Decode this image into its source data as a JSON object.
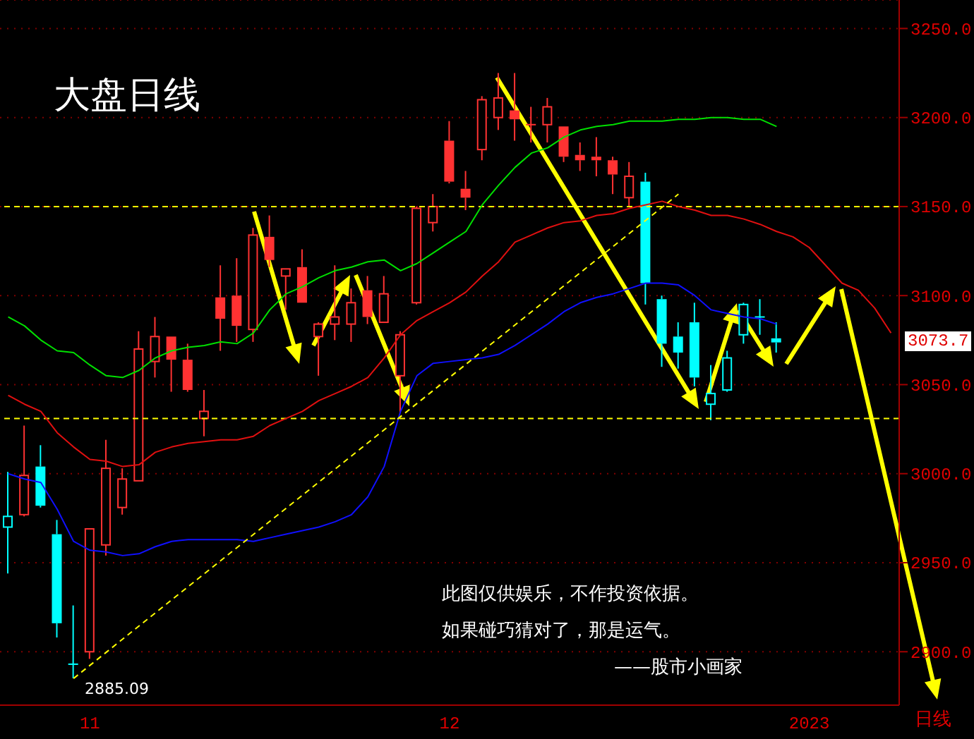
{
  "chart_data": {
    "type": "candlestick",
    "title": "大盘日线",
    "categories": [
      null,
      null,
      null,
      null,
      null,
      "11",
      null,
      null,
      null,
      null,
      null,
      null,
      null,
      null,
      null,
      null,
      null,
      null,
      null,
      null,
      null,
      null,
      null,
      null,
      null,
      null,
      null,
      "12",
      null,
      null,
      null,
      null,
      null,
      null,
      null,
      null,
      null,
      null,
      null,
      null,
      null,
      null,
      null,
      null,
      null,
      null,
      null,
      null,
      null,
      "2023",
      null,
      null,
      null,
      null,
      null
    ],
    "ohlc": [
      [
        2970,
        3001,
        2944,
        2976
      ],
      [
        2977,
        3027,
        2976,
        2999
      ],
      [
        3004,
        3016,
        2981,
        2982
      ],
      [
        2966,
        2974,
        2908,
        2916
      ],
      [
        2893,
        2926,
        2885.09,
        2893
      ],
      [
        2900,
        2969,
        2896,
        2969
      ],
      [
        2960,
        3019,
        2954,
        3003
      ],
      [
        2981,
        3003,
        2977,
        2997
      ],
      [
        2996,
        3080,
        2996,
        3070
      ],
      [
        3063,
        3088,
        3054,
        3077
      ],
      [
        3077,
        3077,
        3046,
        3064
      ],
      [
        3064,
        3073,
        3046,
        3047
      ],
      [
        3031,
        3047,
        3021,
        3035
      ],
      [
        3099,
        3117,
        3069,
        3087
      ],
      [
        3100,
        3121,
        3074,
        3083
      ],
      [
        3081,
        3138,
        3074,
        3134
      ],
      [
        3133,
        3145,
        3116,
        3120
      ],
      [
        3111,
        3115,
        3092,
        3115
      ],
      [
        3116,
        3126,
        3096,
        3096
      ],
      [
        3077,
        3085,
        3055,
        3084
      ],
      [
        3084,
        3117,
        3075,
        3088
      ],
      [
        3084,
        3104,
        3074,
        3096
      ],
      [
        3103,
        3111,
        3084,
        3088
      ],
      [
        3085,
        3111,
        3085,
        3101
      ],
      [
        3055,
        3080,
        3034,
        3078
      ],
      [
        3096,
        3150,
        3095,
        3149
      ],
      [
        3141,
        3157,
        3136,
        3150
      ],
      [
        3187,
        3198,
        3163,
        3164
      ],
      [
        3160,
        3170,
        3148,
        3155
      ],
      [
        3182,
        3212,
        3176,
        3210
      ],
      [
        3200,
        3225,
        3193,
        3211
      ],
      [
        3204,
        3225,
        3187,
        3199
      ],
      [
        3196,
        3206,
        3186,
        3196
      ],
      [
        3196,
        3211,
        3186,
        3206
      ],
      [
        3195,
        3195,
        3175,
        3178
      ],
      [
        3179,
        3186,
        3170,
        3176
      ],
      [
        3178,
        3189,
        3167,
        3176
      ],
      [
        3176,
        3178,
        3157,
        3168
      ],
      [
        3155,
        3175,
        3150,
        3167
      ],
      [
        3164,
        3169,
        3095,
        3107
      ],
      [
        3098,
        3100,
        3060,
        3073
      ],
      [
        3077,
        3085,
        3059,
        3068
      ],
      [
        3085,
        3096,
        3049,
        3054
      ],
      [
        3039,
        3061,
        3030,
        3045
      ],
      [
        3047,
        3069,
        3046,
        3065
      ],
      [
        3078,
        3096,
        3073,
        3095
      ],
      [
        3088,
        3098,
        3078,
        3088
      ],
      [
        3076,
        3085,
        3068,
        3073.7
      ],
      null,
      null,
      null,
      null,
      null,
      null,
      null
    ],
    "colors": [
      "#00ffff",
      "#ff3232",
      "#00ffff",
      "#00ffff",
      "#00ffff",
      "#ff3232",
      "#ff3232",
      "#ff3232",
      "#ff3232",
      "#ff3232",
      "#ff3232",
      "#ff3232",
      "#ff3232",
      "#ff3232",
      "#ff3232",
      "#ff3232",
      "#ff3232",
      "#ff3232",
      "#ff3232",
      "#ff3232",
      "#ff3232",
      "#ff3232",
      "#ff3232",
      "#ff3232",
      "#ff3232",
      "#ff3232",
      "#ff3232",
      "#ff3232",
      "#ff3232",
      "#ff3232",
      "#ff3232",
      "#ff3232",
      "#ff3232",
      "#ff3232",
      "#ff3232",
      "#ff3232",
      "#ff3232",
      "#ff3232",
      "#ff3232",
      "#00ffff",
      "#00ffff",
      "#00ffff",
      "#00ffff",
      "#00ffff",
      "#00ffff",
      "#00ffff",
      "#00ffff",
      "#00ffff",
      null,
      null,
      null,
      null,
      null,
      null,
      null
    ],
    "series": [
      {
        "type": "line",
        "color": "#00e000",
        "values": [
          3088,
          3083,
          3075,
          3069,
          3068,
          3061,
          3055,
          3054,
          3058,
          3065,
          3069,
          3071,
          3072,
          3074,
          3073,
          3079,
          3092,
          3101,
          3105,
          3110,
          3114,
          3116,
          3119,
          3120,
          3114,
          3118,
          3124,
          3130,
          3136,
          3151,
          3162,
          3172,
          3180,
          3183,
          3189,
          3193,
          3195,
          3196,
          3198,
          3198,
          3198,
          3199,
          3199,
          3200,
          3200,
          3199,
          3199,
          3195,
          null,
          null,
          null,
          null,
          null,
          null,
          null
        ]
      },
      {
        "type": "line",
        "color": "#e01010",
        "values": [
          3044,
          3039,
          3035,
          3023,
          3015,
          3008,
          3007,
          3004,
          3005,
          3012,
          3015,
          3017,
          3018,
          3019,
          3019,
          3021,
          3027,
          3031,
          3035,
          3041,
          3045,
          3049,
          3054,
          3065,
          3078,
          3086,
          3091,
          3096,
          3102,
          3111,
          3119,
          3130,
          3134,
          3138,
          3141,
          3142,
          3145,
          3146,
          3149,
          3151,
          3153,
          3150,
          3148,
          3145,
          3145,
          3143,
          3140,
          3136,
          3133,
          3127,
          3117,
          3107,
          3103,
          3093,
          3079
        ]
      },
      {
        "type": "line",
        "color": "#1010ff",
        "values": [
          3000,
          2997,
          2995,
          2980,
          2962,
          2957,
          2956,
          2954,
          2955,
          2959,
          2962,
          2963,
          2963,
          2963,
          2963,
          2962,
          2964,
          2966,
          2968,
          2970,
          2973,
          2977,
          2987,
          3004,
          3035,
          3055,
          3062,
          3063,
          3064,
          3065,
          3067,
          3072,
          3078,
          3084,
          3091,
          3096,
          3099,
          3101,
          3104,
          3107,
          3107,
          3106,
          3100,
          3092,
          3090,
          3088,
          3087,
          3084,
          null,
          null,
          null,
          null,
          null,
          null,
          null
        ]
      },
      {
        "type": "line",
        "color": "#ffff00",
        "line_style": "dashed",
        "values": [
          null,
          null,
          null,
          null,
          2885,
          null,
          null,
          null,
          null,
          null,
          null,
          null,
          null,
          null,
          null,
          null,
          null,
          null,
          null,
          null,
          null,
          null,
          null,
          null,
          null,
          null,
          null,
          null,
          null,
          null,
          null,
          null,
          null,
          null,
          null,
          null,
          null,
          null,
          null,
          null,
          null,
          3157,
          null,
          null,
          null,
          null,
          null,
          null,
          null,
          null,
          null,
          null,
          null,
          null,
          null
        ]
      }
    ],
    "ylim": [
      2870,
      3266
    ],
    "yticks": [
      {
        "value": 2900,
        "label": "2900.0"
      },
      {
        "value": 2950,
        "label": "2950.0"
      },
      {
        "value": 3000,
        "label": "3000.0"
      },
      {
        "value": 3050,
        "label": "3050.0"
      },
      {
        "value": 3100,
        "label": "3100.0"
      },
      {
        "value": 3150,
        "label": "3150.0"
      },
      {
        "value": 3200,
        "label": "3200.0"
      },
      {
        "value": 3250,
        "label": "3250.0"
      }
    ],
    "grid": "y",
    "ref_lines": [
      {
        "axis": "y",
        "value": 3150,
        "color": "#ffff00",
        "line_style": "dashed"
      },
      {
        "axis": "y",
        "value": 3031,
        "color": "#ffff00",
        "line_style": "dashed"
      }
    ],
    "annotations": [
      "此图仅供娱乐，不作投资依据。",
      "如果碰巧猜对了，那是运气。",
      "——股市小画家",
      "日线",
      "2885.09",
      "3073.7"
    ]
  }
}
